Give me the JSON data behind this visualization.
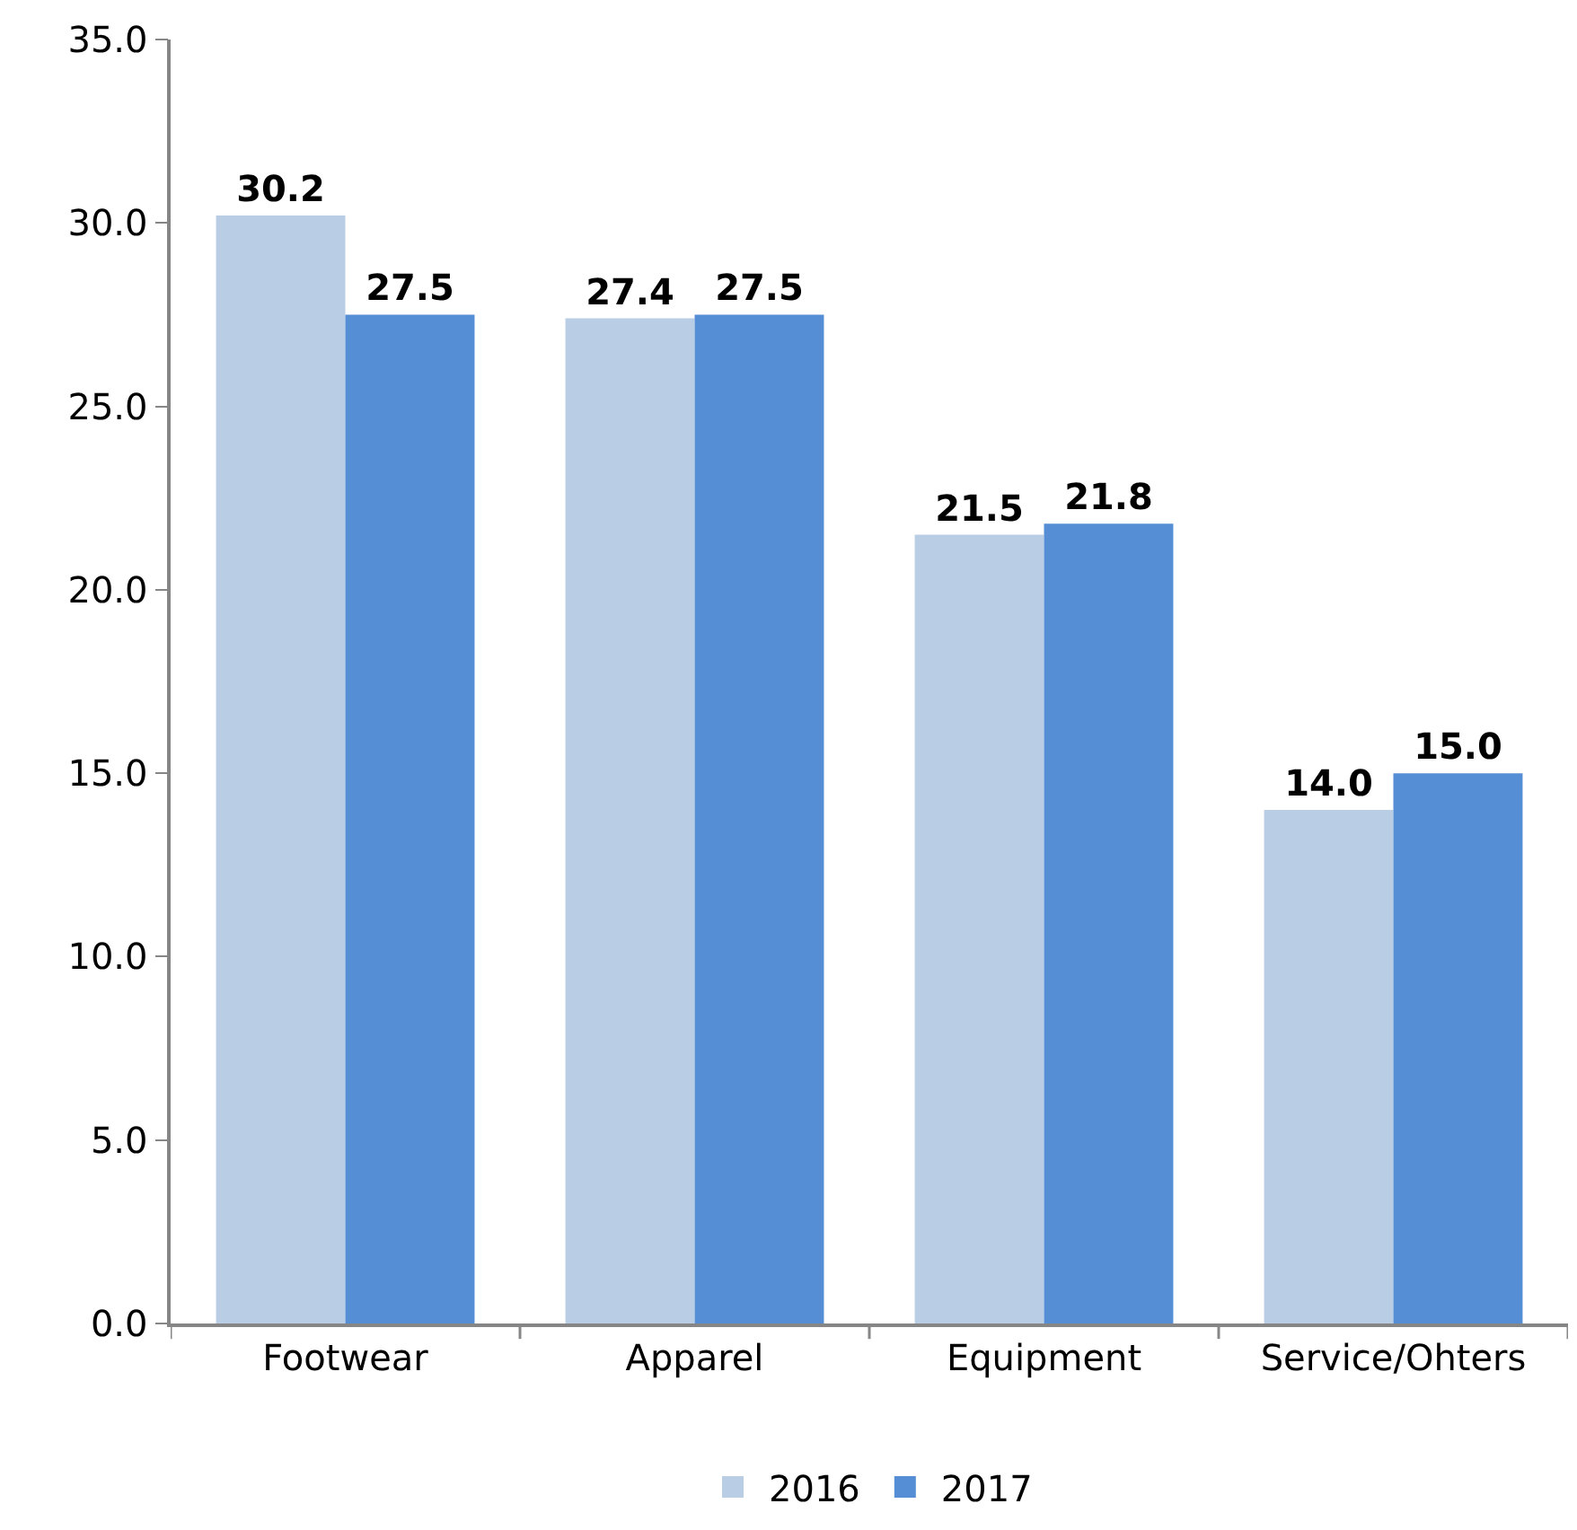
{
  "chart_data": {
    "type": "bar",
    "categories": [
      "Footwear",
      "Apparel",
      "Equipment",
      "Service/Ohters"
    ],
    "series": [
      {
        "name": "2016",
        "color": "#b9cde5",
        "values": [
          30.2,
          27.4,
          21.5,
          14.0
        ],
        "value_labels": [
          "30.2",
          "27.4",
          "21.5",
          "14.0"
        ]
      },
      {
        "name": "2017",
        "color": "#558ed5",
        "values": [
          27.5,
          27.5,
          21.8,
          15.0
        ],
        "value_labels": [
          "27.5",
          "27.5",
          "21.8",
          "15.0"
        ]
      }
    ],
    "ylim": [
      0,
      35
    ],
    "yticks": [
      {
        "value": 0,
        "label": "0.0"
      },
      {
        "value": 5,
        "label": "5.0"
      },
      {
        "value": 10,
        "label": "10.0"
      },
      {
        "value": 15,
        "label": "15.0"
      },
      {
        "value": 20,
        "label": "20.0"
      },
      {
        "value": 25,
        "label": "25.0"
      },
      {
        "value": 30,
        "label": "30.0"
      },
      {
        "value": 35,
        "label": "35.0"
      }
    ],
    "legend": "bottom"
  }
}
